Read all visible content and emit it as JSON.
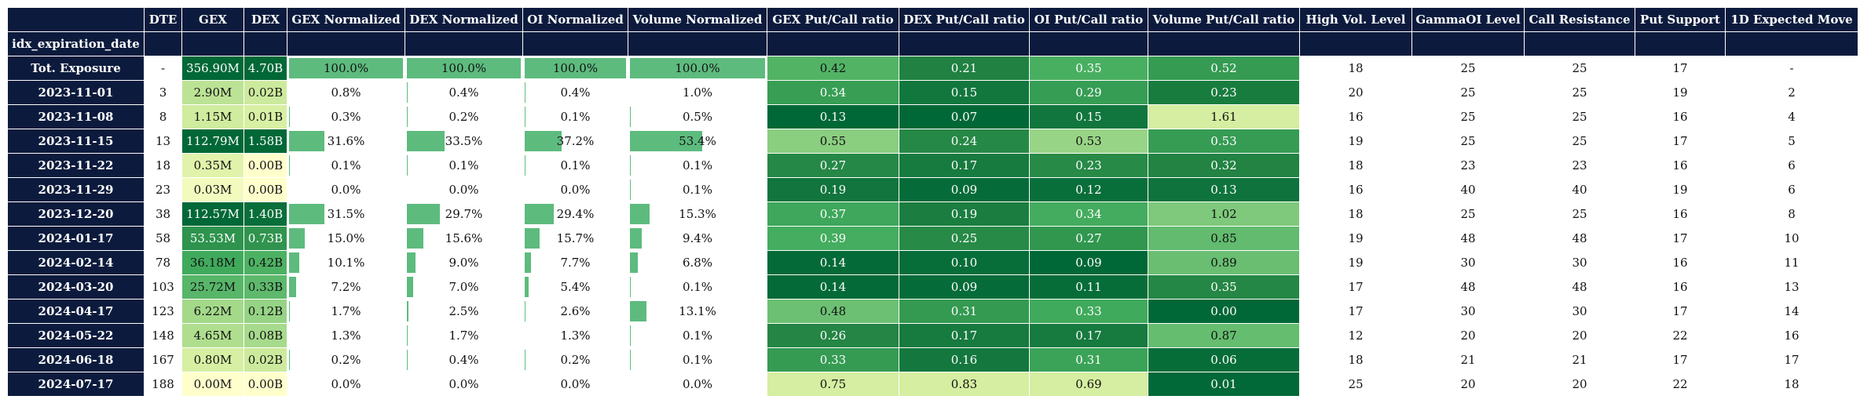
{
  "table": {
    "index_label": "idx_expiration_date",
    "columns": [
      {
        "key": "dte",
        "label": "DTE",
        "kind": "plain"
      },
      {
        "key": "gex",
        "label": "GEX",
        "kind": "gradient",
        "values_field": "gex_val"
      },
      {
        "key": "dex",
        "label": "DEX",
        "kind": "gradient",
        "values_field": "dex_val"
      },
      {
        "key": "gex_norm",
        "label": "GEX Normalized",
        "kind": "bar"
      },
      {
        "key": "dex_norm",
        "label": "DEX Normalized",
        "kind": "bar"
      },
      {
        "key": "oi_norm",
        "label": "OI Normalized",
        "kind": "bar"
      },
      {
        "key": "vol_norm",
        "label": "Volume Normalized",
        "kind": "bar"
      },
      {
        "key": "gex_pc",
        "label": "GEX Put/Call ratio",
        "kind": "ratio"
      },
      {
        "key": "dex_pc",
        "label": "DEX Put/Call ratio",
        "kind": "ratio"
      },
      {
        "key": "oi_pc",
        "label": "OI Put/Call ratio",
        "kind": "ratio"
      },
      {
        "key": "vol_pc",
        "label": "Volume Put/Call ratio",
        "kind": "ratio"
      },
      {
        "key": "high_vol",
        "label": "High Vol. Level",
        "kind": "plain"
      },
      {
        "key": "gamma_oi",
        "label": "GammaOI Level",
        "kind": "plain"
      },
      {
        "key": "call_res",
        "label": "Call Resistance",
        "kind": "plain"
      },
      {
        "key": "put_sup",
        "label": "Put Support",
        "kind": "plain"
      },
      {
        "key": "exp_move",
        "label": "1D Expected Move",
        "kind": "plain"
      }
    ],
    "rows": [
      {
        "idx": "Tot. Exposure",
        "dte": "-",
        "gex": "356.90M",
        "gex_val": 356.9,
        "dex": "4.70B",
        "dex_val": 4.7,
        "gex_norm": "100.0%",
        "gex_norm_val": 100.0,
        "dex_norm": "100.0%",
        "dex_norm_val": 100.0,
        "oi_norm": "100.0%",
        "oi_norm_val": 100.0,
        "vol_norm": "100.0%",
        "vol_norm_val": 100.0,
        "gex_pc": "0.42",
        "dex_pc": "0.21",
        "oi_pc": "0.35",
        "vol_pc": "0.52",
        "high_vol": "18",
        "gamma_oi": "25",
        "call_res": "25",
        "put_sup": "17",
        "exp_move": "-"
      },
      {
        "idx": "2023-11-01",
        "dte": "3",
        "gex": "2.90M",
        "gex_val": 2.9,
        "dex": "0.02B",
        "dex_val": 0.02,
        "gex_norm": "0.8%",
        "gex_norm_val": 0.8,
        "dex_norm": "0.4%",
        "dex_norm_val": 0.4,
        "oi_norm": "0.4%",
        "oi_norm_val": 0.4,
        "vol_norm": "1.0%",
        "vol_norm_val": 1.0,
        "gex_pc": "0.34",
        "dex_pc": "0.15",
        "oi_pc": "0.29",
        "vol_pc": "0.23",
        "high_vol": "20",
        "gamma_oi": "25",
        "call_res": "25",
        "put_sup": "19",
        "exp_move": "2"
      },
      {
        "idx": "2023-11-08",
        "dte": "8",
        "gex": "1.15M",
        "gex_val": 1.15,
        "dex": "0.01B",
        "dex_val": 0.01,
        "gex_norm": "0.3%",
        "gex_norm_val": 0.3,
        "dex_norm": "0.2%",
        "dex_norm_val": 0.2,
        "oi_norm": "0.1%",
        "oi_norm_val": 0.1,
        "vol_norm": "0.5%",
        "vol_norm_val": 0.5,
        "gex_pc": "0.13",
        "dex_pc": "0.07",
        "oi_pc": "0.15",
        "vol_pc": "1.61",
        "high_vol": "16",
        "gamma_oi": "25",
        "call_res": "25",
        "put_sup": "16",
        "exp_move": "4"
      },
      {
        "idx": "2023-11-15",
        "dte": "13",
        "gex": "112.79M",
        "gex_val": 112.79,
        "dex": "1.58B",
        "dex_val": 1.58,
        "gex_norm": "31.6%",
        "gex_norm_val": 31.6,
        "dex_norm": "33.5%",
        "dex_norm_val": 33.5,
        "oi_norm": "37.2%",
        "oi_norm_val": 37.2,
        "vol_norm": "53.4%",
        "vol_norm_val": 53.4,
        "gex_pc": "0.55",
        "dex_pc": "0.24",
        "oi_pc": "0.53",
        "vol_pc": "0.53",
        "high_vol": "19",
        "gamma_oi": "25",
        "call_res": "25",
        "put_sup": "17",
        "exp_move": "5"
      },
      {
        "idx": "2023-11-22",
        "dte": "18",
        "gex": "0.35M",
        "gex_val": 0.35,
        "dex": "0.00B",
        "dex_val": 0.0,
        "gex_norm": "0.1%",
        "gex_norm_val": 0.1,
        "dex_norm": "0.1%",
        "dex_norm_val": 0.1,
        "oi_norm": "0.1%",
        "oi_norm_val": 0.1,
        "vol_norm": "0.1%",
        "vol_norm_val": 0.1,
        "gex_pc": "0.27",
        "dex_pc": "0.17",
        "oi_pc": "0.23",
        "vol_pc": "0.32",
        "high_vol": "18",
        "gamma_oi": "23",
        "call_res": "23",
        "put_sup": "16",
        "exp_move": "6"
      },
      {
        "idx": "2023-11-29",
        "dte": "23",
        "gex": "0.03M",
        "gex_val": 0.03,
        "dex": "0.00B",
        "dex_val": 0.0,
        "gex_norm": "0.0%",
        "gex_norm_val": 0.0,
        "dex_norm": "0.0%",
        "dex_norm_val": 0.0,
        "oi_norm": "0.0%",
        "oi_norm_val": 0.0,
        "vol_norm": "0.1%",
        "vol_norm_val": 0.1,
        "gex_pc": "0.19",
        "dex_pc": "0.09",
        "oi_pc": "0.12",
        "vol_pc": "0.13",
        "high_vol": "16",
        "gamma_oi": "40",
        "call_res": "40",
        "put_sup": "19",
        "exp_move": "6"
      },
      {
        "idx": "2023-12-20",
        "dte": "38",
        "gex": "112.57M",
        "gex_val": 112.57,
        "dex": "1.40B",
        "dex_val": 1.4,
        "gex_norm": "31.5%",
        "gex_norm_val": 31.5,
        "dex_norm": "29.7%",
        "dex_norm_val": 29.7,
        "oi_norm": "29.4%",
        "oi_norm_val": 29.4,
        "vol_norm": "15.3%",
        "vol_norm_val": 15.3,
        "gex_pc": "0.37",
        "dex_pc": "0.19",
        "oi_pc": "0.34",
        "vol_pc": "1.02",
        "high_vol": "18",
        "gamma_oi": "25",
        "call_res": "25",
        "put_sup": "16",
        "exp_move": "8"
      },
      {
        "idx": "2024-01-17",
        "dte": "58",
        "gex": "53.53M",
        "gex_val": 53.53,
        "dex": "0.73B",
        "dex_val": 0.73,
        "gex_norm": "15.0%",
        "gex_norm_val": 15.0,
        "dex_norm": "15.6%",
        "dex_norm_val": 15.6,
        "oi_norm": "15.7%",
        "oi_norm_val": 15.7,
        "vol_norm": "9.4%",
        "vol_norm_val": 9.4,
        "gex_pc": "0.39",
        "dex_pc": "0.25",
        "oi_pc": "0.27",
        "vol_pc": "0.85",
        "high_vol": "19",
        "gamma_oi": "48",
        "call_res": "48",
        "put_sup": "17",
        "exp_move": "10"
      },
      {
        "idx": "2024-02-14",
        "dte": "78",
        "gex": "36.18M",
        "gex_val": 36.18,
        "dex": "0.42B",
        "dex_val": 0.42,
        "gex_norm": "10.1%",
        "gex_norm_val": 10.1,
        "dex_norm": "9.0%",
        "dex_norm_val": 9.0,
        "oi_norm": "7.7%",
        "oi_norm_val": 7.7,
        "vol_norm": "6.8%",
        "vol_norm_val": 6.8,
        "gex_pc": "0.14",
        "dex_pc": "0.10",
        "oi_pc": "0.09",
        "vol_pc": "0.89",
        "high_vol": "19",
        "gamma_oi": "30",
        "call_res": "30",
        "put_sup": "16",
        "exp_move": "11"
      },
      {
        "idx": "2024-03-20",
        "dte": "103",
        "gex": "25.72M",
        "gex_val": 25.72,
        "dex": "0.33B",
        "dex_val": 0.33,
        "gex_norm": "7.2%",
        "gex_norm_val": 7.2,
        "dex_norm": "7.0%",
        "dex_norm_val": 7.0,
        "oi_norm": "5.4%",
        "oi_norm_val": 5.4,
        "vol_norm": "0.1%",
        "vol_norm_val": 0.1,
        "gex_pc": "0.14",
        "dex_pc": "0.09",
        "oi_pc": "0.11",
        "vol_pc": "0.35",
        "high_vol": "17",
        "gamma_oi": "48",
        "call_res": "48",
        "put_sup": "16",
        "exp_move": "13"
      },
      {
        "idx": "2024-04-17",
        "dte": "123",
        "gex": "6.22M",
        "gex_val": 6.22,
        "dex": "0.12B",
        "dex_val": 0.12,
        "gex_norm": "1.7%",
        "gex_norm_val": 1.7,
        "dex_norm": "2.5%",
        "dex_norm_val": 2.5,
        "oi_norm": "2.6%",
        "oi_norm_val": 2.6,
        "vol_norm": "13.1%",
        "vol_norm_val": 13.1,
        "gex_pc": "0.48",
        "dex_pc": "0.31",
        "oi_pc": "0.33",
        "vol_pc": "0.00",
        "high_vol": "17",
        "gamma_oi": "30",
        "call_res": "30",
        "put_sup": "17",
        "exp_move": "14"
      },
      {
        "idx": "2024-05-22",
        "dte": "148",
        "gex": "4.65M",
        "gex_val": 4.65,
        "dex": "0.08B",
        "dex_val": 0.08,
        "gex_norm": "1.3%",
        "gex_norm_val": 1.3,
        "dex_norm": "1.7%",
        "dex_norm_val": 1.7,
        "oi_norm": "1.3%",
        "oi_norm_val": 1.3,
        "vol_norm": "0.1%",
        "vol_norm_val": 0.1,
        "gex_pc": "0.26",
        "dex_pc": "0.17",
        "oi_pc": "0.17",
        "vol_pc": "0.87",
        "high_vol": "12",
        "gamma_oi": "20",
        "call_res": "20",
        "put_sup": "22",
        "exp_move": "16"
      },
      {
        "idx": "2024-06-18",
        "dte": "167",
        "gex": "0.80M",
        "gex_val": 0.8,
        "dex": "0.02B",
        "dex_val": 0.02,
        "gex_norm": "0.2%",
        "gex_norm_val": 0.2,
        "dex_norm": "0.4%",
        "dex_norm_val": 0.4,
        "oi_norm": "0.2%",
        "oi_norm_val": 0.2,
        "vol_norm": "0.1%",
        "vol_norm_val": 0.1,
        "gex_pc": "0.33",
        "dex_pc": "0.16",
        "oi_pc": "0.31",
        "vol_pc": "0.06",
        "high_vol": "18",
        "gamma_oi": "21",
        "call_res": "21",
        "put_sup": "17",
        "exp_move": "17"
      },
      {
        "idx": "2024-07-17",
        "dte": "188",
        "gex": "0.00M",
        "gex_val": 0.0,
        "dex": "0.00B",
        "dex_val": 0.0,
        "gex_norm": "0.0%",
        "gex_norm_val": 0.0,
        "dex_norm": "0.0%",
        "dex_norm_val": 0.0,
        "oi_norm": "0.0%",
        "oi_norm_val": 0.0,
        "vol_norm": "0.0%",
        "vol_norm_val": 0.0,
        "gex_pc": "0.75",
        "dex_pc": "0.83",
        "oi_pc": "0.69",
        "vol_pc": "0.01",
        "high_vol": "25",
        "gamma_oi": "20",
        "call_res": "20",
        "put_sup": "22",
        "exp_move": "18"
      }
    ]
  },
  "colors": {
    "header_bg": "#0c1b3d",
    "header_text": "#ffffff",
    "bar_fill": "#5dbb7e",
    "scale": [
      "#ffffcc",
      "#d9f0a3",
      "#addd8e",
      "#78c679",
      "#41ab5d",
      "#238443",
      "#006837"
    ]
  }
}
